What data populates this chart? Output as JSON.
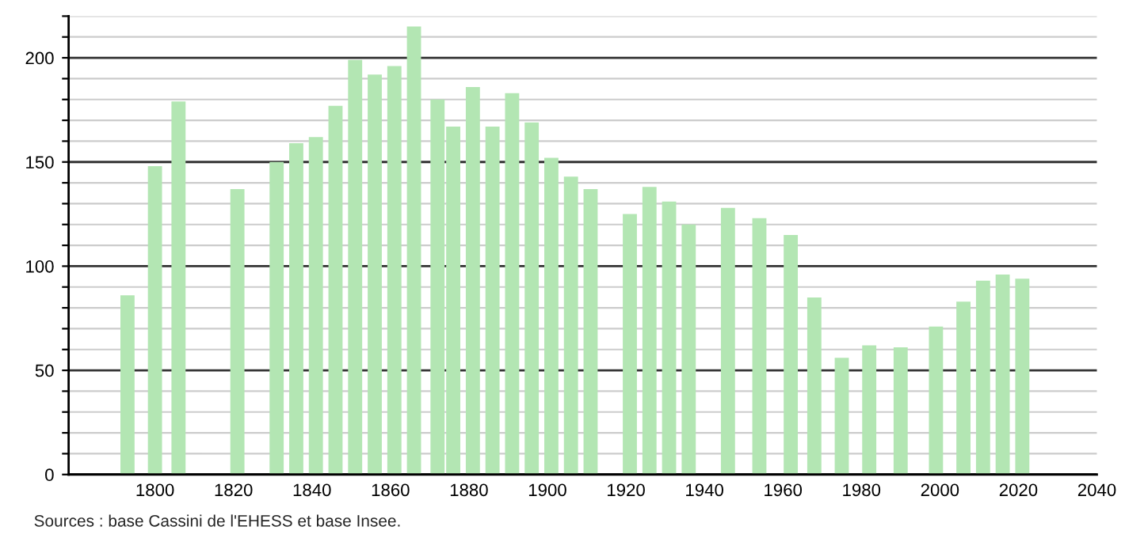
{
  "chart_data": {
    "type": "bar",
    "color": "#b3e6b3",
    "x": [
      1793,
      1800,
      1806,
      1821,
      1831,
      1836,
      1841,
      1846,
      1851,
      1856,
      1861,
      1866,
      1872,
      1876,
      1881,
      1886,
      1891,
      1896,
      1901,
      1906,
      1911,
      1921,
      1926,
      1931,
      1936,
      1946,
      1954,
      1962,
      1968,
      1975,
      1982,
      1990,
      1999,
      2006,
      2011,
      2016,
      2021
    ],
    "values": [
      86,
      148,
      179,
      137,
      150,
      159,
      162,
      177,
      199,
      192,
      196,
      215,
      180,
      167,
      186,
      167,
      183,
      169,
      152,
      143,
      137,
      125,
      138,
      131,
      120,
      128,
      123,
      115,
      85,
      56,
      62,
      61,
      71,
      83,
      93,
      96,
      94
    ],
    "xlim": [
      1778,
      2040
    ],
    "xticks": [
      1800,
      1820,
      1840,
      1860,
      1880,
      1900,
      1920,
      1940,
      1960,
      1980,
      2000,
      2020,
      2040
    ],
    "ylim": [
      0,
      220
    ],
    "yticks": [
      0,
      {
        "value": 10,
        "label": null
      },
      {
        "value": 20,
        "label": null
      },
      {
        "value": 30,
        "label": null
      },
      {
        "value": 40,
        "label": null
      },
      50,
      {
        "value": 60,
        "label": null
      },
      {
        "value": 70,
        "label": null
      },
      {
        "value": 80,
        "label": null
      },
      {
        "value": 90,
        "label": null
      },
      100,
      {
        "value": 110,
        "label": null
      },
      {
        "value": 120,
        "label": null
      },
      {
        "value": 130,
        "label": null
      },
      {
        "value": 140,
        "label": null
      },
      150,
      {
        "value": 160,
        "label": null
      },
      {
        "value": 170,
        "label": null
      },
      {
        "value": 180,
        "label": null
      },
      {
        "value": 190,
        "label": null
      },
      200,
      {
        "value": 210,
        "label": null
      },
      {
        "value": 220,
        "label": null
      }
    ],
    "grid": "y",
    "annotations": [
      "Sources : base Cassini de l'EHESS et base Insee."
    ]
  }
}
